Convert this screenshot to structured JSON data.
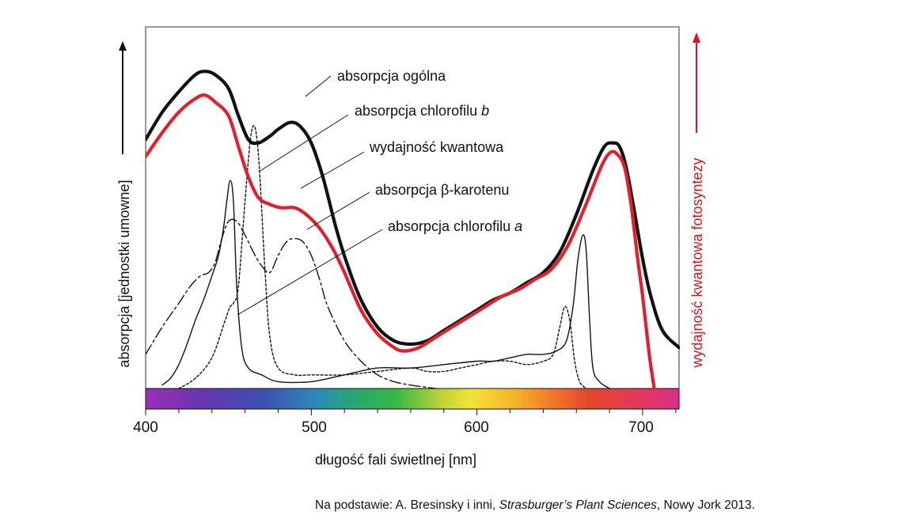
{
  "chart_data": {
    "type": "line",
    "xlabel": "długość fali świetlnej [nm]",
    "ylabel_left": "absorpcja [jednostki umowne]",
    "ylabel_right": "wydajność kwantowa fotosyntezy",
    "x_ticks": [
      "400",
      "500",
      "600",
      "700"
    ],
    "xlim": [
      400,
      722
    ],
    "ylim": [
      0,
      100
    ],
    "grid": false,
    "series": [
      {
        "key": "total",
        "name": "absorpcja ogólna",
        "color": "#111111",
        "style": "solid-thick",
        "points": [
          [
            400,
            73
          ],
          [
            410,
            81
          ],
          [
            420,
            87
          ],
          [
            430,
            92
          ],
          [
            436,
            93
          ],
          [
            442,
            92
          ],
          [
            450,
            88
          ],
          [
            456,
            80
          ],
          [
            462,
            73
          ],
          [
            468,
            72
          ],
          [
            475,
            74
          ],
          [
            480,
            76
          ],
          [
            487,
            78
          ],
          [
            493,
            77
          ],
          [
            500,
            72
          ],
          [
            507,
            62
          ],
          [
            515,
            47
          ],
          [
            522,
            36
          ],
          [
            530,
            26
          ],
          [
            540,
            18
          ],
          [
            550,
            14
          ],
          [
            560,
            13
          ],
          [
            570,
            14
          ],
          [
            580,
            17
          ],
          [
            590,
            20
          ],
          [
            600,
            23
          ],
          [
            610,
            26
          ],
          [
            620,
            28
          ],
          [
            630,
            31
          ],
          [
            640,
            34
          ],
          [
            650,
            40
          ],
          [
            660,
            51
          ],
          [
            670,
            64
          ],
          [
            677,
            71
          ],
          [
            682,
            72
          ],
          [
            686,
            71
          ],
          [
            690,
            65
          ],
          [
            695,
            52
          ],
          [
            700,
            38
          ],
          [
            705,
            27
          ],
          [
            712,
            17
          ],
          [
            722,
            12
          ]
        ]
      },
      {
        "key": "quantum",
        "name": "wydajność kwantowa",
        "color": "#e0202e",
        "style": "solid-thick",
        "points": [
          [
            400,
            68
          ],
          [
            410,
            75
          ],
          [
            420,
            81
          ],
          [
            430,
            85
          ],
          [
            436,
            86
          ],
          [
            442,
            84
          ],
          [
            450,
            80
          ],
          [
            456,
            71
          ],
          [
            462,
            62
          ],
          [
            468,
            56
          ],
          [
            475,
            54
          ],
          [
            482,
            53
          ],
          [
            490,
            53
          ],
          [
            497,
            51
          ],
          [
            505,
            47
          ],
          [
            513,
            41
          ],
          [
            520,
            34
          ],
          [
            530,
            23
          ],
          [
            540,
            16
          ],
          [
            550,
            12
          ],
          [
            556,
            11
          ],
          [
            565,
            12
          ],
          [
            575,
            15
          ],
          [
            585,
            18
          ],
          [
            595,
            21
          ],
          [
            605,
            24
          ],
          [
            615,
            27
          ],
          [
            625,
            29
          ],
          [
            635,
            32
          ],
          [
            645,
            35
          ],
          [
            655,
            42
          ],
          [
            665,
            53
          ],
          [
            675,
            65
          ],
          [
            680,
            69
          ],
          [
            684,
            69
          ],
          [
            689,
            65
          ],
          [
            693,
            54
          ],
          [
            697,
            38
          ],
          [
            700,
            27
          ],
          [
            704,
            10
          ],
          [
            707,
            0
          ]
        ]
      },
      {
        "key": "chlb",
        "name": "absorpcja chlorofilu b",
        "color": "#111111",
        "style": "dotted",
        "points": [
          [
            420,
            0
          ],
          [
            430,
            3
          ],
          [
            440,
            9
          ],
          [
            448,
            20
          ],
          [
            451,
            24
          ],
          [
            453,
            25
          ],
          [
            456,
            30
          ],
          [
            460,
            55
          ],
          [
            463,
            72
          ],
          [
            465,
            77
          ],
          [
            467,
            74
          ],
          [
            469,
            62
          ],
          [
            472,
            35
          ],
          [
            475,
            15
          ],
          [
            480,
            6
          ],
          [
            490,
            4
          ],
          [
            500,
            4
          ],
          [
            520,
            4
          ],
          [
            540,
            5
          ],
          [
            560,
            6
          ],
          [
            570,
            5
          ],
          [
            580,
            5
          ],
          [
            590,
            6
          ],
          [
            600,
            7
          ],
          [
            610,
            8
          ],
          [
            620,
            8
          ],
          [
            630,
            7
          ],
          [
            640,
            8
          ],
          [
            646,
            10
          ],
          [
            650,
            18
          ],
          [
            653,
            24
          ],
          [
            656,
            20
          ],
          [
            659,
            8
          ],
          [
            662,
            2
          ],
          [
            666,
            0
          ]
        ]
      },
      {
        "key": "carotene",
        "name": "absorpcja β-karotenu",
        "color": "#111111",
        "style": "dashdot",
        "points": [
          [
            400,
            10
          ],
          [
            410,
            18
          ],
          [
            420,
            25
          ],
          [
            427,
            30
          ],
          [
            433,
            33
          ],
          [
            438,
            34
          ],
          [
            442,
            37
          ],
          [
            446,
            44
          ],
          [
            450,
            49
          ],
          [
            455,
            49
          ],
          [
            460,
            45
          ],
          [
            465,
            40
          ],
          [
            470,
            36
          ],
          [
            475,
            34
          ],
          [
            480,
            39
          ],
          [
            485,
            43
          ],
          [
            490,
            44
          ],
          [
            495,
            43
          ],
          [
            500,
            39
          ],
          [
            505,
            32
          ],
          [
            510,
            24
          ],
          [
            520,
            14
          ],
          [
            530,
            8
          ],
          [
            540,
            4
          ],
          [
            550,
            2
          ],
          [
            560,
            1
          ],
          [
            575,
            0
          ]
        ]
      },
      {
        "key": "chla",
        "name": "absorpcja chlorofilu a",
        "color": "#111111",
        "style": "solid-thin",
        "points": [
          [
            410,
            1
          ],
          [
            415,
            3
          ],
          [
            420,
            7
          ],
          [
            425,
            13
          ],
          [
            430,
            20
          ],
          [
            435,
            26
          ],
          [
            440,
            33
          ],
          [
            444,
            39
          ],
          [
            447,
            47
          ],
          [
            449,
            55
          ],
          [
            451,
            61
          ],
          [
            453,
            55
          ],
          [
            455,
            30
          ],
          [
            458,
            12
          ],
          [
            462,
            6
          ],
          [
            470,
            4
          ],
          [
            480,
            2
          ],
          [
            500,
            2
          ],
          [
            520,
            4
          ],
          [
            540,
            6
          ],
          [
            560,
            6
          ],
          [
            580,
            7
          ],
          [
            600,
            8
          ],
          [
            610,
            8
          ],
          [
            620,
            9
          ],
          [
            630,
            10
          ],
          [
            640,
            10
          ],
          [
            648,
            11
          ],
          [
            654,
            14
          ],
          [
            658,
            24
          ],
          [
            661,
            38
          ],
          [
            664,
            45
          ],
          [
            666,
            40
          ],
          [
            668,
            20
          ],
          [
            670,
            6
          ],
          [
            674,
            2
          ],
          [
            680,
            0
          ]
        ]
      }
    ]
  },
  "labels": {
    "total": "absorpcja ogólna",
    "chlb_prefix": "absorpcja chlorofilu ",
    "chlb_suffix": "b",
    "quantum": "wydajność kwantowa",
    "carotene": "absorpcja β-karotenu",
    "chla_prefix": "absorpcja chlorofilu ",
    "chla_suffix": "a"
  },
  "source": {
    "prefix": "Na podstawie: A. Bresinsky i inni, ",
    "title": "Strasburger’s Plant Sciences",
    "suffix": ", Nowy Jork 2013."
  },
  "colors": {
    "total": "#111111",
    "quantum": "#e0202e",
    "right_axis": "#e0101e"
  }
}
